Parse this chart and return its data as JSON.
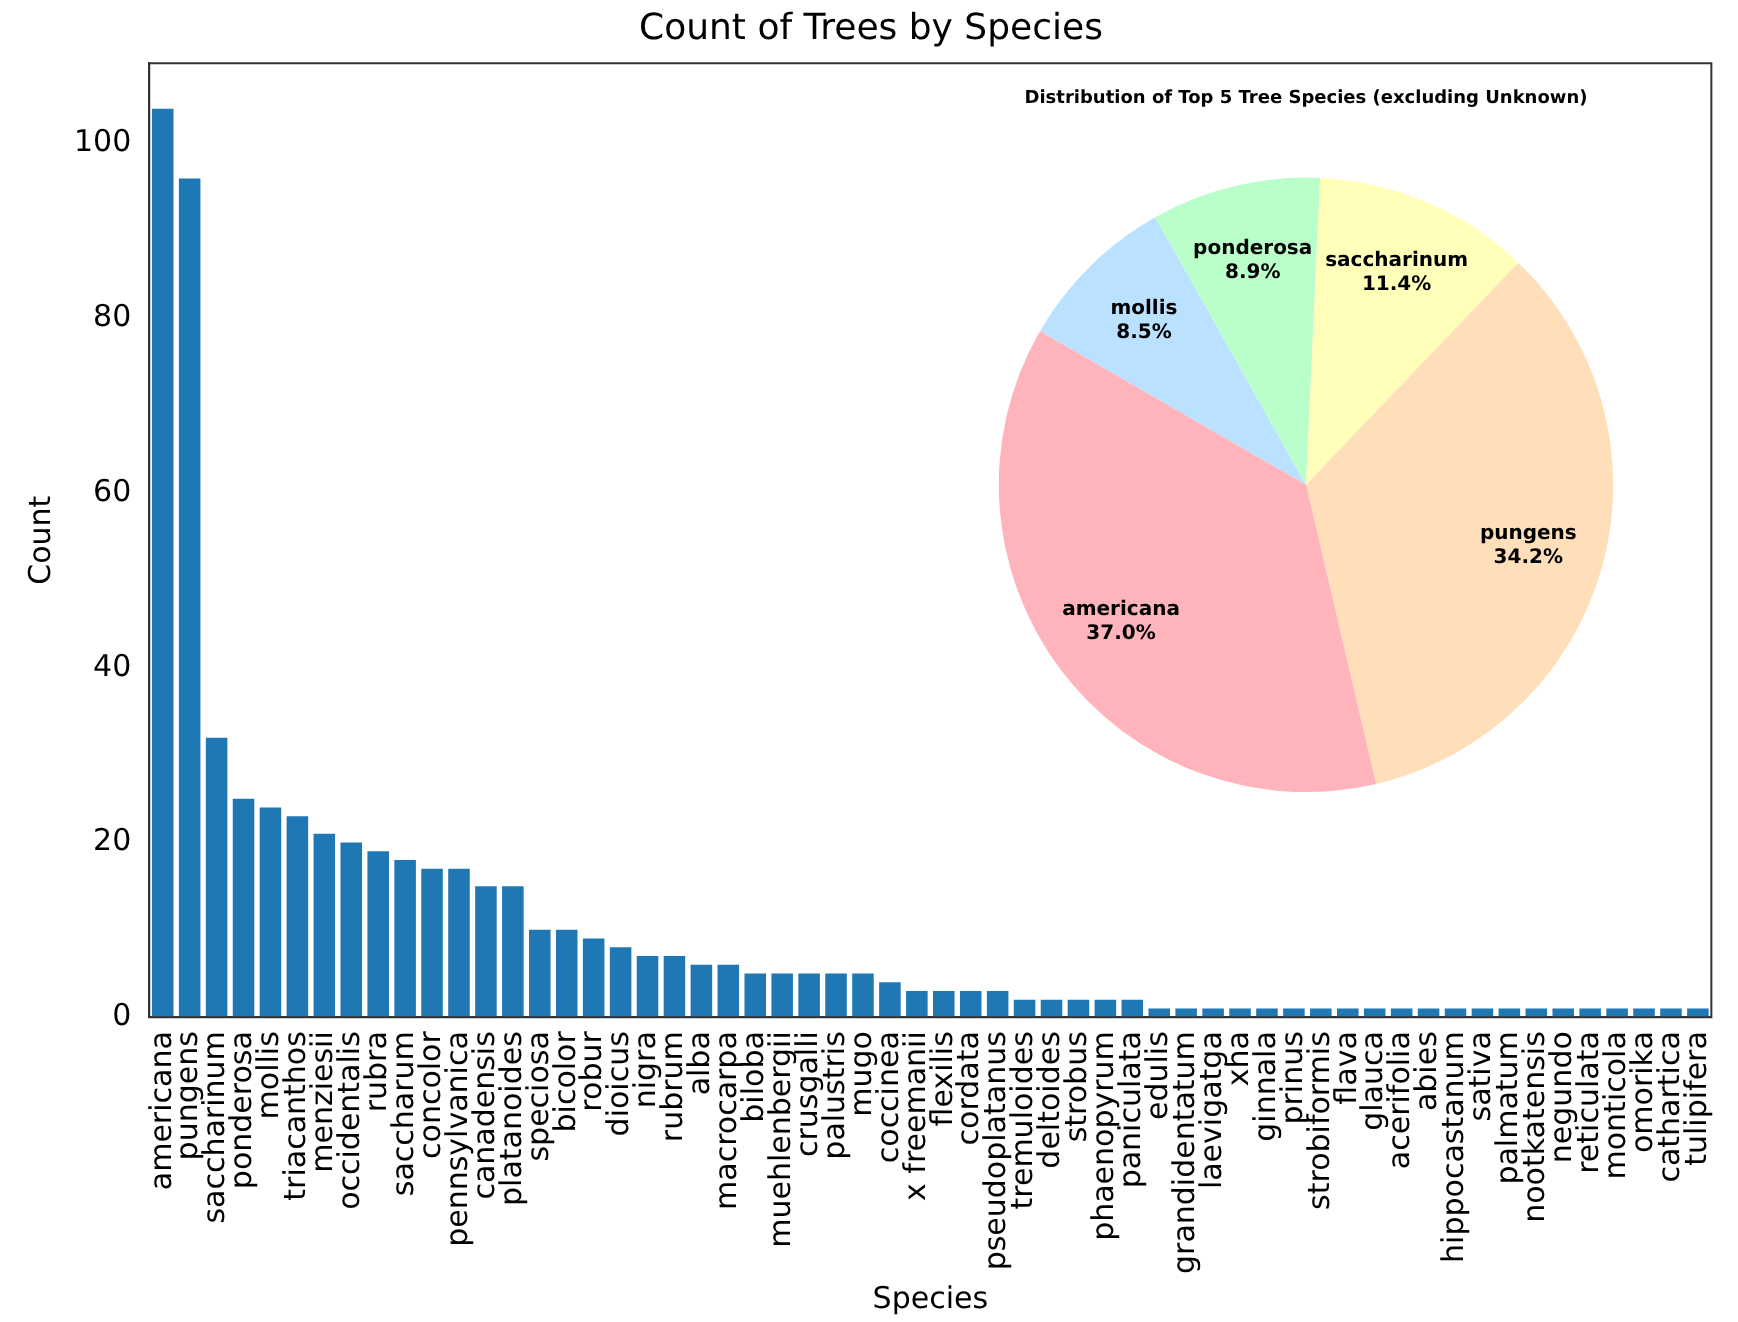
{
  "chart_data": [
    {
      "type": "bar",
      "title": "Count of Trees by Species",
      "xlabel": "Species",
      "ylabel": "Count",
      "color": "#1f77b4",
      "legend": false,
      "grid": false,
      "categories": [
        "americana",
        "pungens",
        "saccharinum",
        "ponderosa",
        "mollis",
        "triacanthos",
        "menziesii",
        "occidentalis",
        "rubra",
        "saccharum",
        "concolor",
        "pennsylvanica",
        "canadensis",
        "platanoides",
        "speciosa",
        "bicolor",
        "robur",
        "dioicus",
        "nigra",
        "rubrum",
        "alba",
        "macrocarpa",
        "biloba",
        "muehlenbergii",
        "crusgalli",
        "palustris",
        "mugo",
        "coccinea",
        "x freemanii",
        "flexilis",
        "cordata",
        "pseudoplatanus",
        "tremuloides",
        "deltoides",
        "strobus",
        "phaenopyrum",
        "paniculata",
        "edulis",
        "grandidentatum",
        "laevigatga",
        "xha",
        "ginnala",
        "prinus",
        "strobiformis",
        "flava",
        "glauca",
        "acerifolia",
        "abies",
        "hippocastanum",
        "sativa",
        "palmatum",
        "nootkatensis",
        "negundo",
        "reticulata",
        "monticola",
        "omorika",
        "cathartica",
        "tulipifera"
      ],
      "values": [
        104,
        96,
        32,
        25,
        24,
        23,
        21,
        20,
        19,
        18,
        17,
        17,
        15,
        15,
        10,
        10,
        9,
        8,
        7,
        7,
        6,
        6,
        5,
        5,
        5,
        5,
        5,
        4,
        3,
        3,
        3,
        3,
        2,
        2,
        2,
        2,
        2,
        1,
        1,
        1,
        1,
        1,
        1,
        1,
        1,
        1,
        1,
        1,
        1,
        1,
        1,
        1,
        1,
        1,
        1,
        1,
        1,
        1
      ],
      "ylim": [
        0,
        109.2
      ],
      "yticks": [
        0,
        20,
        40,
        60,
        80,
        100
      ]
    },
    {
      "type": "pie",
      "title": "Distribution of Top 5 Tree Species (excluding Unknown)",
      "legend": false,
      "categories": [
        "mollis",
        "ponderosa",
        "saccharinum",
        "pungens",
        "americana"
      ],
      "values": [
        8.5,
        8.9,
        11.4,
        34.2,
        37.0
      ],
      "value_labels": [
        "8.5%",
        "8.9%",
        "11.4%",
        "34.2%",
        "37.0%"
      ],
      "colors": [
        "#bae1ff",
        "#baffc9",
        "#ffffba",
        "#ffdfba",
        "#ffb3ba"
      ]
    }
  ]
}
